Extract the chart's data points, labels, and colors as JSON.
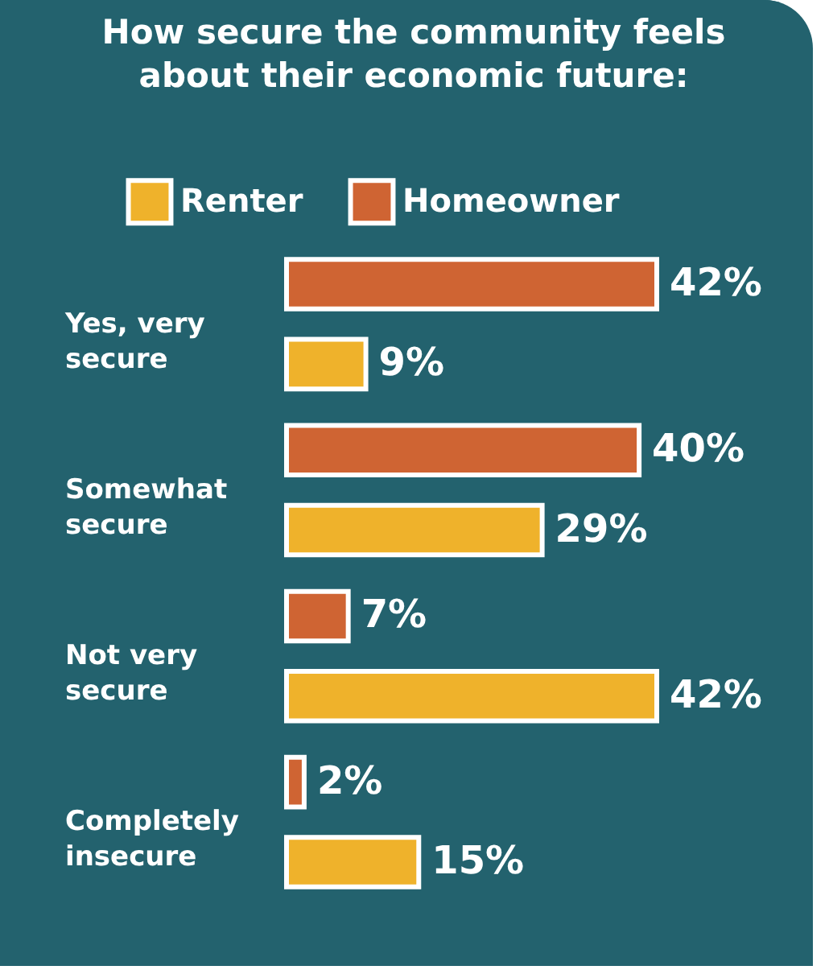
{
  "chart_data": {
    "type": "bar",
    "orientation": "horizontal",
    "title": "How secure the community feels about their economic future:",
    "categories": [
      "Yes, very secure",
      "Somewhat secure",
      "Not very secure",
      "Completely insecure"
    ],
    "series": [
      {
        "name": "Homeowner",
        "color": "#cf6433",
        "values": [
          42,
          40,
          7,
          2
        ],
        "value_labels": [
          "42%",
          "40%",
          "7%",
          "2%"
        ]
      },
      {
        "name": "Renter",
        "color": "#efb22b",
        "values": [
          9,
          29,
          42,
          15
        ],
        "value_labels": [
          "9%",
          "29%",
          "42%",
          "15%"
        ]
      }
    ],
    "legend": "top"
  }
}
